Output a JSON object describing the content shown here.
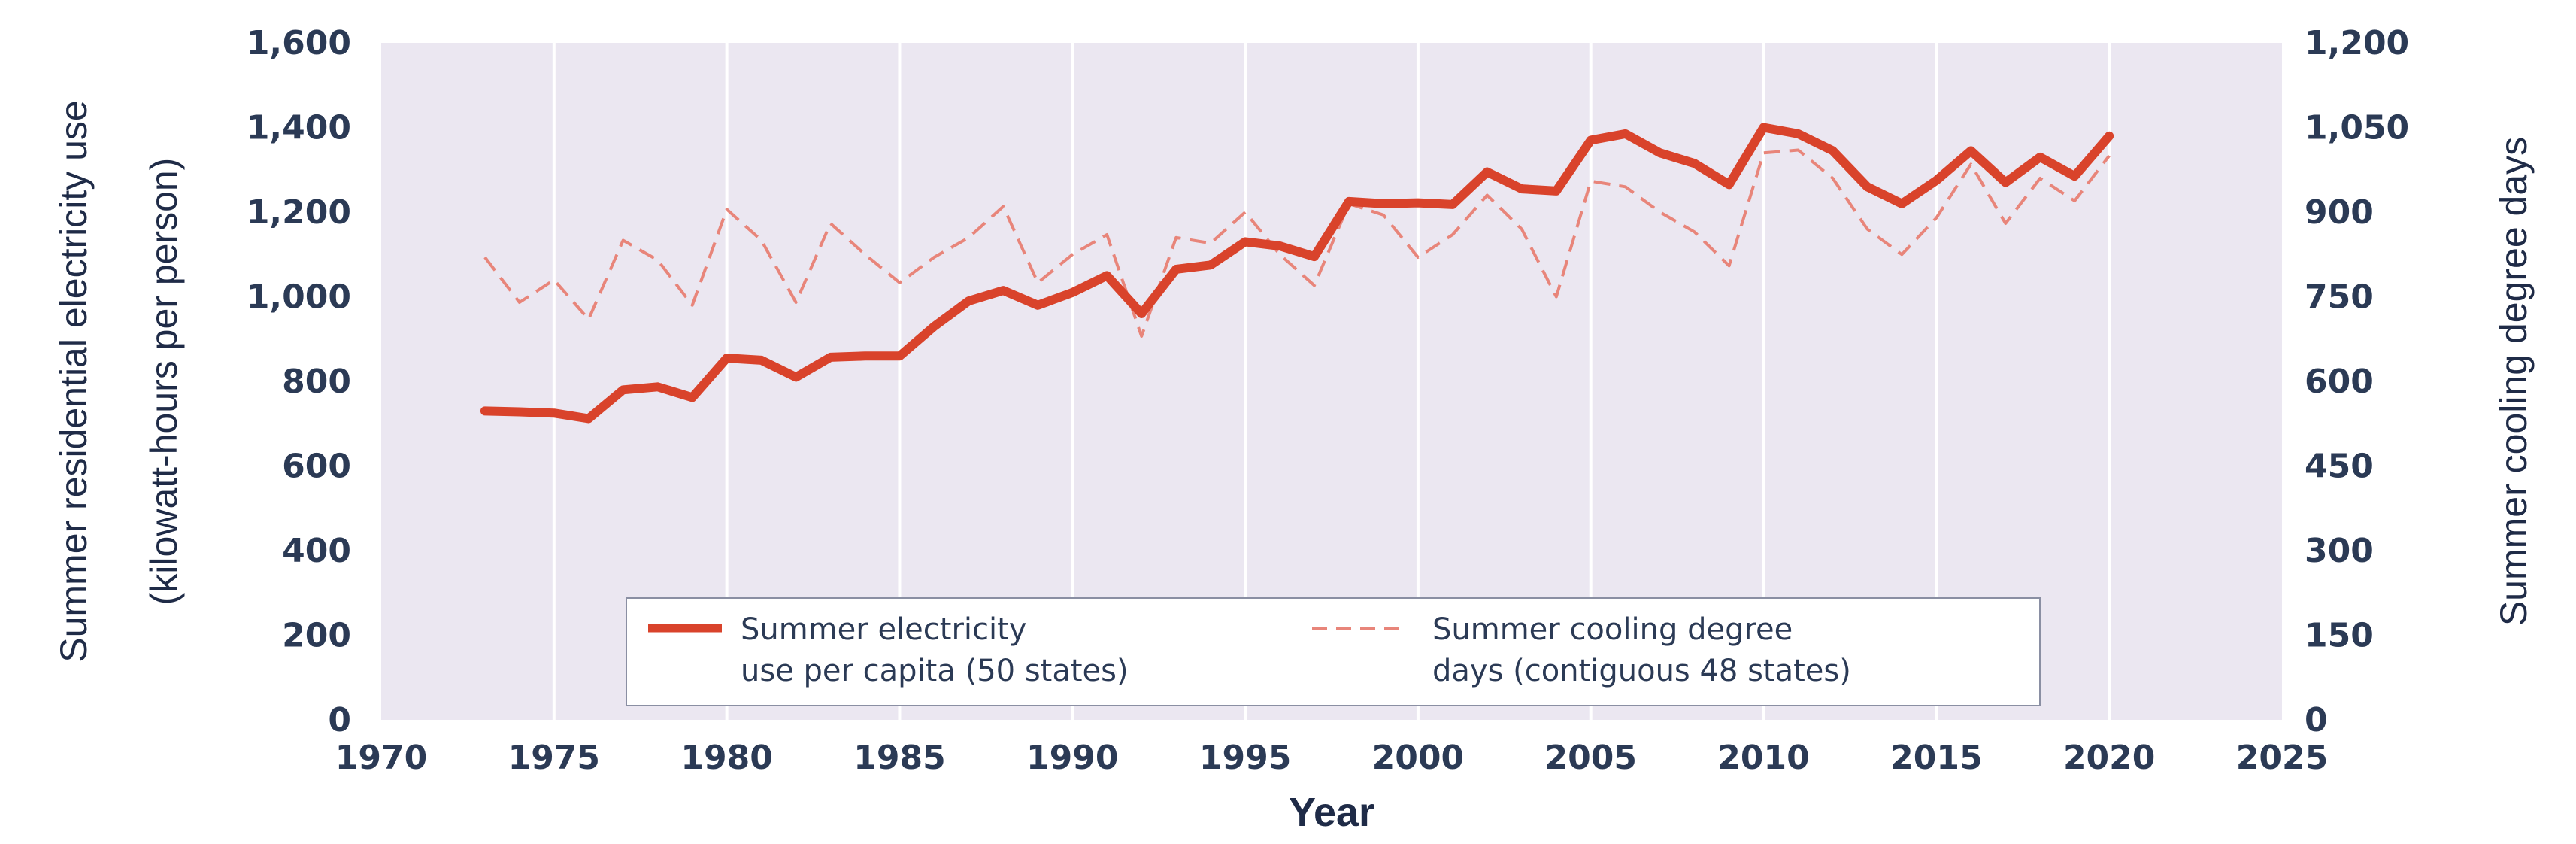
{
  "chart_data": {
    "type": "line",
    "title": "",
    "xlabel": "Year",
    "ylabel_lines": [
      "Summer residential electricity use",
      "(kilowatt-hours per person)"
    ],
    "y2label": "Summer cooling degree days",
    "xlim": [
      1970,
      2025
    ],
    "ylim": [
      0,
      1600
    ],
    "y2lim": [
      0,
      1200
    ],
    "x_ticks": [
      1970,
      1975,
      1980,
      1985,
      1990,
      1995,
      2000,
      2005,
      2010,
      2015,
      2020,
      2025
    ],
    "x_tick_labels": [
      "1970",
      "1975",
      "1980",
      "1985",
      "1990",
      "1995",
      "2000",
      "2005",
      "2010",
      "2015",
      "2020",
      "2025"
    ],
    "y_ticks": [
      0,
      200,
      400,
      600,
      800,
      1000,
      1200,
      1400,
      1600
    ],
    "y_tick_labels": [
      "0",
      "200",
      "400",
      "600",
      "800",
      "1,000",
      "1,200",
      "1,400",
      "1,600"
    ],
    "y2_ticks": [
      0,
      150,
      300,
      450,
      600,
      750,
      900,
      1050,
      1200
    ],
    "y2_tick_labels": [
      "0",
      "150",
      "300",
      "450",
      "600",
      "750",
      "900",
      "1,050",
      "1,200"
    ],
    "grid": "vertical",
    "legend_position": "bottom-center",
    "colors": {
      "electricity": "#d9432b",
      "cooling": "#e8857a",
      "plot_bg": "#ebe7f1",
      "grid": "#ffffff"
    },
    "series": [
      {
        "name_lines": [
          "Summer electricity",
          "use per capita (50 states)"
        ],
        "axis": "left",
        "style": "solid",
        "x": [
          1973,
          1974,
          1975,
          1976,
          1977,
          1978,
          1979,
          1980,
          1981,
          1982,
          1983,
          1984,
          1985,
          1986,
          1987,
          1988,
          1989,
          1990,
          1991,
          1992,
          1993,
          1994,
          1995,
          1996,
          1997,
          1998,
          1999,
          2000,
          2001,
          2002,
          2003,
          2004,
          2005,
          2006,
          2007,
          2008,
          2009,
          2010,
          2011,
          2012,
          2013,
          2014,
          2015,
          2016,
          2017,
          2018,
          2019,
          2020
        ],
        "values": [
          730,
          728,
          725,
          712,
          780,
          787,
          762,
          855,
          850,
          810,
          857,
          860,
          860,
          930,
          990,
          1015,
          980,
          1010,
          1050,
          960,
          1065,
          1075,
          1130,
          1120,
          1095,
          1225,
          1220,
          1222,
          1218,
          1295,
          1255,
          1250,
          1370,
          1385,
          1340,
          1315,
          1265,
          1400,
          1385,
          1345,
          1260,
          1220,
          1275,
          1345,
          1270,
          1330,
          1285,
          1380
        ]
      },
      {
        "name_lines": [
          "Summer cooling degree",
          "days (contiguous 48 states)"
        ],
        "axis": "right",
        "style": "dashed",
        "x": [
          1973,
          1974,
          1975,
          1976,
          1977,
          1978,
          1979,
          1980,
          1981,
          1982,
          1983,
          1984,
          1985,
          1986,
          1987,
          1988,
          1989,
          1990,
          1991,
          1992,
          1993,
          1994,
          1995,
          1996,
          1997,
          1998,
          1999,
          2000,
          2001,
          2002,
          2003,
          2004,
          2005,
          2006,
          2007,
          2008,
          2009,
          2010,
          2011,
          2012,
          2013,
          2014,
          2015,
          2016,
          2017,
          2018,
          2019,
          2020
        ],
        "values": [
          820,
          740,
          780,
          710,
          850,
          815,
          735,
          905,
          850,
          740,
          880,
          825,
          775,
          820,
          855,
          910,
          775,
          825,
          860,
          680,
          855,
          845,
          900,
          825,
          770,
          915,
          895,
          820,
          860,
          930,
          870,
          750,
          955,
          945,
          900,
          865,
          805,
          1005,
          1010,
          960,
          870,
          825,
          890,
          985,
          880,
          960,
          920,
          1000
        ]
      }
    ]
  }
}
